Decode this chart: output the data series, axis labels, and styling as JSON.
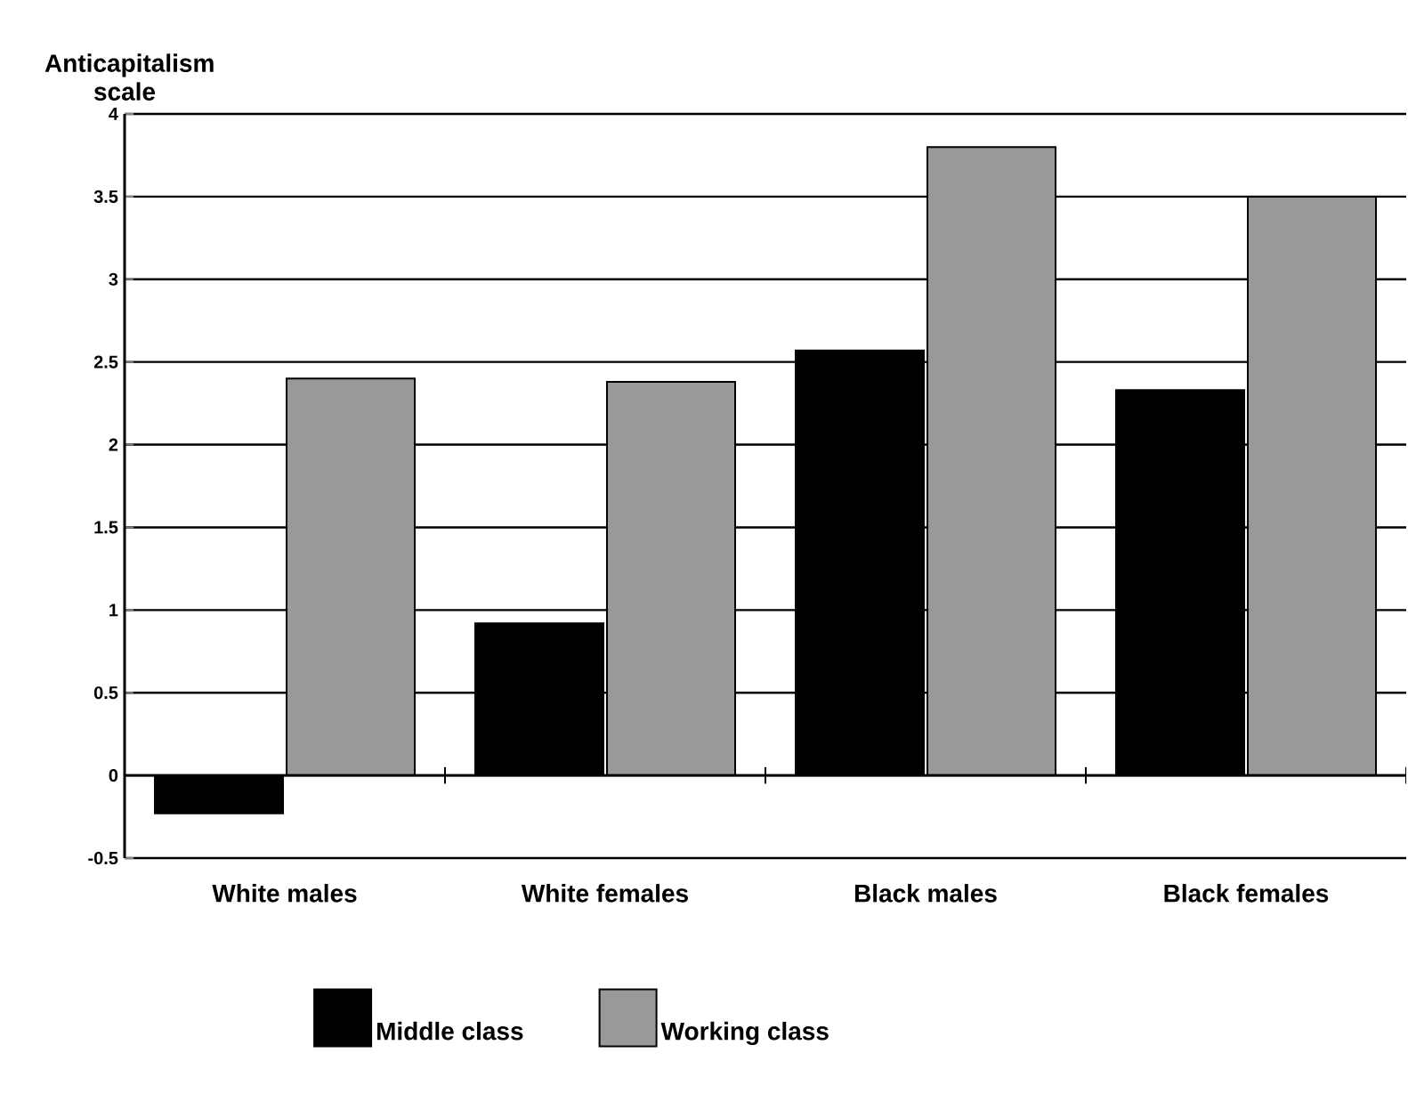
{
  "chart_data": {
    "type": "bar",
    "ylabel": "Anticapitalism scale",
    "categories": [
      "White males",
      "White females",
      "Black males",
      "Black females"
    ],
    "series": [
      {
        "name": "Middle class",
        "color": "#000000",
        "values": [
          -0.23,
          0.92,
          2.57,
          2.33
        ]
      },
      {
        "name": "Working class",
        "color": "#999999",
        "values": [
          2.4,
          2.38,
          3.8,
          3.5
        ]
      }
    ],
    "ylim": [
      -0.5,
      4
    ],
    "yticks": [
      -0.5,
      0,
      0.5,
      1,
      1.5,
      2,
      2.5,
      3,
      3.5,
      4
    ],
    "grid": "y",
    "legend": "bottom"
  }
}
